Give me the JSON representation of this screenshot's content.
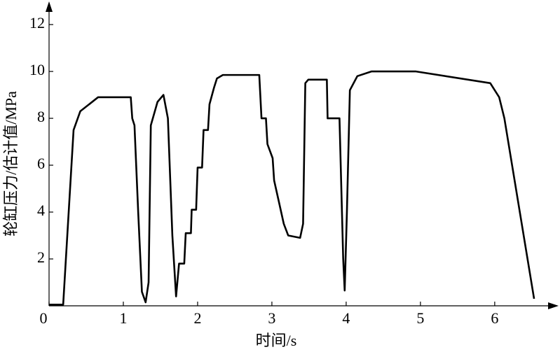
{
  "chart_data": {
    "type": "line",
    "xlabel": "时间/s",
    "ylabel": "轮缸压力/估计值/MPa",
    "xlim": [
      0,
      6.86
    ],
    "ylim": [
      0,
      12.75
    ],
    "xticks": [
      0,
      1,
      2,
      3,
      4,
      5,
      6
    ],
    "yticks": [
      2,
      4,
      6,
      8,
      10,
      12
    ],
    "color": "#000000",
    "x": [
      0,
      0.19,
      0.33,
      0.42,
      0.66,
      1.1,
      1.12,
      1.15,
      1.2,
      1.25,
      1.3,
      1.34,
      1.37,
      1.46,
      1.54,
      1.6,
      1.66,
      1.71,
      1.75,
      1.82,
      1.84,
      1.91,
      1.92,
      1.98,
      2.0,
      2.06,
      2.08,
      2.14,
      2.16,
      2.22,
      2.26,
      2.34,
      2.83,
      2.86,
      2.92,
      2.94,
      3.01,
      3.03,
      3.09,
      3.16,
      3.22,
      3.38,
      3.42,
      3.45,
      3.49,
      3.74,
      3.75,
      3.91,
      3.96,
      3.98,
      4.01,
      4.05,
      4.15,
      4.34,
      4.94,
      5.94,
      6.06,
      6.13,
      6.53
    ],
    "values": [
      0.05,
      0.05,
      7.5,
      8.3,
      8.9,
      8.9,
      8.0,
      7.7,
      4.0,
      0.6,
      0.15,
      1.0,
      7.7,
      8.7,
      9.0,
      8.0,
      3.0,
      0.4,
      1.8,
      1.8,
      3.1,
      3.1,
      4.1,
      4.1,
      5.9,
      5.9,
      7.5,
      7.5,
      8.6,
      9.3,
      9.7,
      9.85,
      9.85,
      8.0,
      8.0,
      6.9,
      6.3,
      5.35,
      4.5,
      3.5,
      3.0,
      2.9,
      3.5,
      9.5,
      9.65,
      9.65,
      8.0,
      8.0,
      2.0,
      0.65,
      4.0,
      9.2,
      9.8,
      10.0,
      10.0,
      9.5,
      8.9,
      8.0,
      0.3
    ]
  }
}
